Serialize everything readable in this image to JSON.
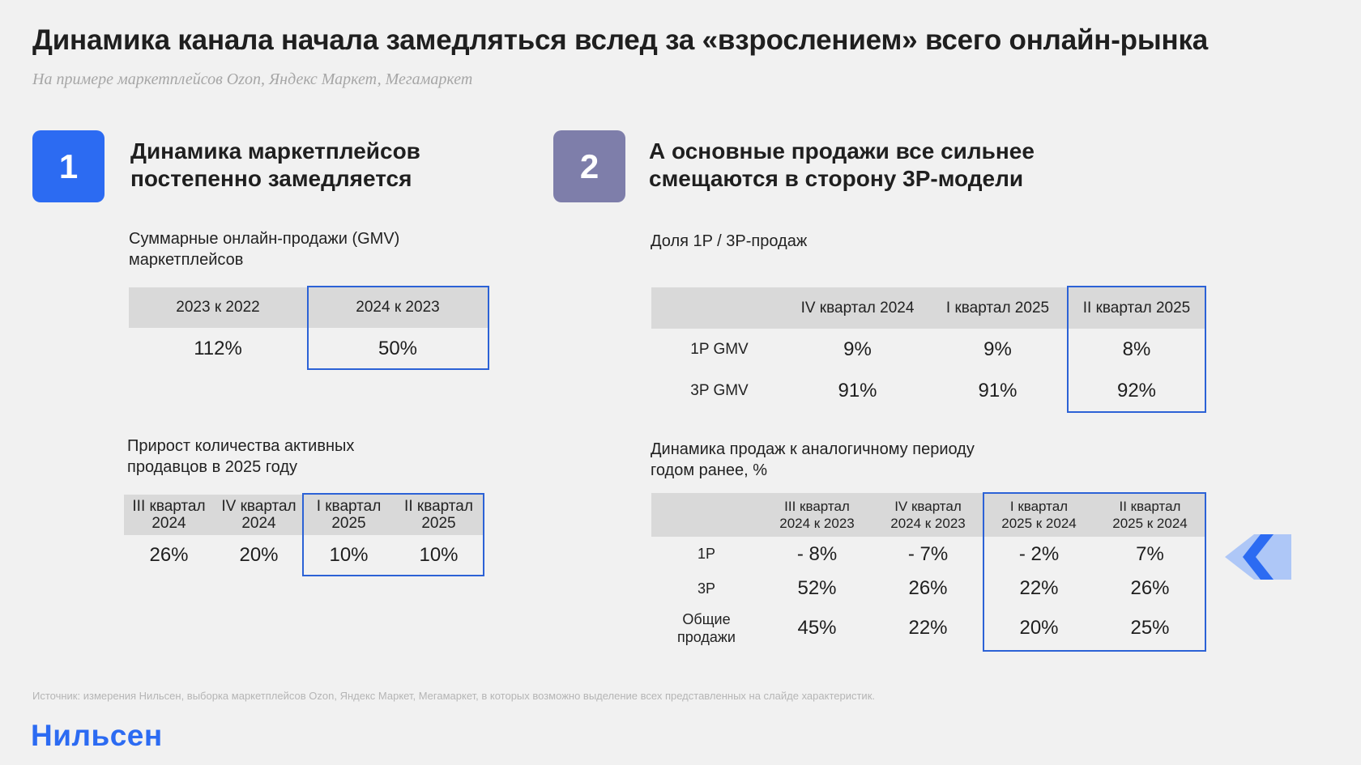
{
  "title": "Динамика канала начала замедляться вслед за «взрослением» всего онлайн-рынка",
  "subtitle": "На примере маркетплейсов Ozon, Яндекс Маркет, Мегамаркет",
  "section1": {
    "number": "1",
    "heading_line1": "Динамика маркетплейсов",
    "heading_line2": "постепенно замедляется",
    "gmv": {
      "label_line1": "Суммарные онлайн-продажи (GMV)",
      "label_line2": "маркетплейсов",
      "headers": [
        "2023 к 2022",
        "2024 к 2023"
      ],
      "values": [
        "112%",
        "50%"
      ]
    },
    "sellers": {
      "label_line1": "Прирост количества активных",
      "label_line2": "продавцов в 2025 году",
      "headers": [
        {
          "line1": "III квартал",
          "line2": "2024"
        },
        {
          "line1": "IV квартал",
          "line2": "2024"
        },
        {
          "line1": "I квартал",
          "line2": "2025"
        },
        {
          "line1": "II квартал",
          "line2": "2025"
        }
      ],
      "values": [
        "26%",
        "20%",
        "10%",
        "10%"
      ]
    }
  },
  "section2": {
    "number": "2",
    "heading_line1": "А основные продажи все сильнее",
    "heading_line2": "смещаются в сторону 3P-модели",
    "share": {
      "label": "Доля 1P / 3P-продаж",
      "headers": [
        "IV квартал 2024",
        "I квартал 2025",
        "II квартал 2025"
      ],
      "rows": [
        {
          "label": "1P GMV",
          "values": [
            "9%",
            "9%",
            "8%"
          ]
        },
        {
          "label": "3P GMV",
          "values": [
            "91%",
            "91%",
            "92%"
          ]
        }
      ]
    },
    "dynamics": {
      "label_line1": "Динамика продаж к аналогичному периоду",
      "label_line2": "годом ранее, %",
      "headers": [
        {
          "line1": "III квартал",
          "line2": "2024 к 2023"
        },
        {
          "line1": "IV квартал",
          "line2": "2024 к 2023"
        },
        {
          "line1": "I квартал",
          "line2": "2025 к 2024"
        },
        {
          "line1": "II квартал",
          "line2": "2025 к 2024"
        }
      ],
      "rows": [
        {
          "label_line1": "1P",
          "label_line2": "",
          "values": [
            "- 8%",
            "- 7%",
            "- 2%",
            "7%"
          ]
        },
        {
          "label_line1": "3P",
          "label_line2": "",
          "values": [
            "52%",
            "26%",
            "22%",
            "26%"
          ]
        },
        {
          "label_line1": "Общие",
          "label_line2": "продажи",
          "values": [
            "45%",
            "22%",
            "20%",
            "25%"
          ]
        }
      ]
    }
  },
  "source": "Источник: измерения Нильсен, выборка маркетплейсов Ozon, Яндекс Маркет, Мегамаркет, в которых возможно выделение всех представленных на слайде характеристик.",
  "logo": "Нильсен",
  "colors": {
    "accent_blue": "#2c6bf2",
    "badge2": "#7e7eaa",
    "highlight_border": "#2c62d6",
    "header_gray": "#d9d9d9"
  },
  "icons": {
    "nav": "double-chevron-left-icon"
  }
}
